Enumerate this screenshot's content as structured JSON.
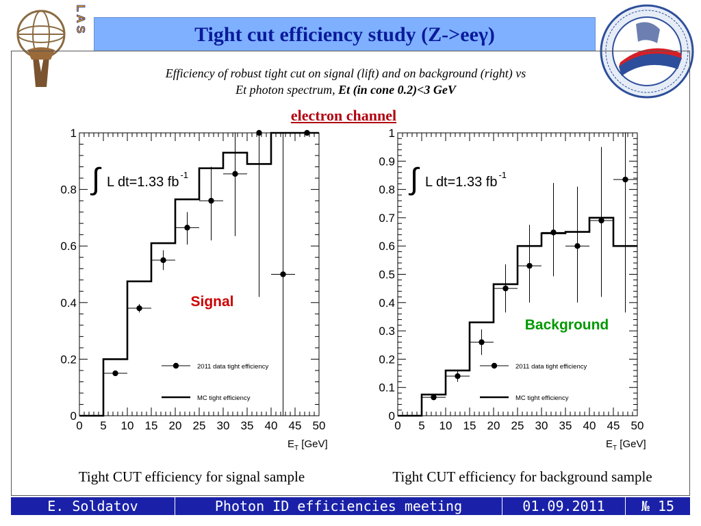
{
  "title": "Tight cut efficiency study (Z->eeγ)",
  "subtitle_line1": "Efficiency of robust tight cut on signal (lift) and on background (right) vs",
  "subtitle_line2_plain": "Et photon spectrum, ",
  "subtitle_line2_bold": "Et (in cone 0.2)<3 GeV",
  "channel_label": "electron channel",
  "logos": {
    "left": "ATLAS",
    "left_icon": "atlas-logo-icon",
    "right_icon": "mephi-logo-icon"
  },
  "captions": {
    "left": "Tight CUT efficiency for signal sample",
    "right": "Tight CUT efficiency for background sample"
  },
  "footer": {
    "author": "E. Soldatov",
    "meeting": "Photon ID efficiencies meeting",
    "date": "01.09.2011",
    "page": "№ 15"
  },
  "colors": {
    "title_bar": "#7eb0ff",
    "title_text": "#0a1a9a",
    "footer_bg": "#1a21a8",
    "signal_label": "#cc0000",
    "background_label": "#009900",
    "channel": "#b00010"
  },
  "chart_data": [
    {
      "type": "line",
      "annotation": "Signal",
      "lumi_label": "L dt=1.33 fb",
      "lumi_exp": "-1",
      "xlabel_main": "E",
      "xlabel_sub": "T",
      "xlabel_unit": " [GeV]",
      "xlim": [
        0,
        50
      ],
      "ylim": [
        0,
        1
      ],
      "xticks": [
        0,
        5,
        10,
        15,
        20,
        25,
        30,
        35,
        40,
        45,
        50
      ],
      "yticks": [
        0,
        0.2,
        0.4,
        0.6,
        0.8,
        1
      ],
      "ytick_labels": [
        "0",
        "0.2",
        "0.4",
        "0.6",
        "0.8",
        "1"
      ],
      "legend": [
        "2011 data tight efficiency",
        "MC tight efficiency"
      ],
      "mc_edges": [
        0,
        5,
        10,
        15,
        20,
        25,
        30,
        35,
        40,
        45,
        50
      ],
      "mc_values": [
        0,
        0.2,
        0.475,
        0.61,
        0.765,
        0.875,
        0.93,
        0.89,
        1,
        1
      ],
      "data_x": [
        7.5,
        12.5,
        17.5,
        22.5,
        27.5,
        32.5,
        37.5,
        42.5,
        47.5
      ],
      "data_y": [
        0.15,
        0.38,
        0.55,
        0.665,
        0.76,
        0.855,
        1.0,
        0.5,
        1.0
      ],
      "data_err_lo": [
        0.0,
        0.015,
        0.035,
        0.06,
        0.14,
        0.22,
        0.58,
        0.5,
        0.0
      ],
      "data_err_hi": [
        0.0,
        0.015,
        0.035,
        0.055,
        0.12,
        0.145,
        0.0,
        0.5,
        0.0
      ]
    },
    {
      "type": "line",
      "annotation": "Background",
      "lumi_label": "L dt=1.33 fb",
      "lumi_exp": "-1",
      "xlabel_main": "E",
      "xlabel_sub": "T",
      "xlabel_unit": " [GeV]",
      "xlim": [
        0,
        50
      ],
      "ylim": [
        0,
        1
      ],
      "xticks": [
        0,
        5,
        10,
        15,
        20,
        25,
        30,
        35,
        40,
        45,
        50
      ],
      "yticks": [
        0,
        0.1,
        0.2,
        0.3,
        0.4,
        0.5,
        0.6,
        0.7,
        0.8,
        0.9,
        1
      ],
      "ytick_labels": [
        "0",
        "0.1",
        "0.2",
        "0.3",
        "0.4",
        "0.5",
        "0.6",
        "0.7",
        "0.8",
        "0.9",
        "1"
      ],
      "legend": [
        "2011 data tight efficiency",
        "MC tight efficiency"
      ],
      "mc_edges": [
        0,
        5,
        10,
        15,
        20,
        25,
        30,
        35,
        40,
        45,
        50
      ],
      "mc_values": [
        0,
        0.075,
        0.16,
        0.33,
        0.465,
        0.6,
        0.645,
        0.65,
        0.7,
        0.6
      ],
      "data_x": [
        7.5,
        12.5,
        17.5,
        22.5,
        27.5,
        32.5,
        37.5,
        42.5,
        47.5
      ],
      "data_y": [
        0.065,
        0.14,
        0.26,
        0.45,
        0.53,
        0.648,
        0.6,
        0.69,
        0.835
      ],
      "data_err_lo": [
        0.005,
        0.02,
        0.045,
        0.085,
        0.13,
        0.155,
        0.2,
        0.27,
        0.47
      ],
      "data_err_hi": [
        0.005,
        0.02,
        0.045,
        0.085,
        0.145,
        0.175,
        0.21,
        0.26,
        0.165
      ]
    }
  ]
}
